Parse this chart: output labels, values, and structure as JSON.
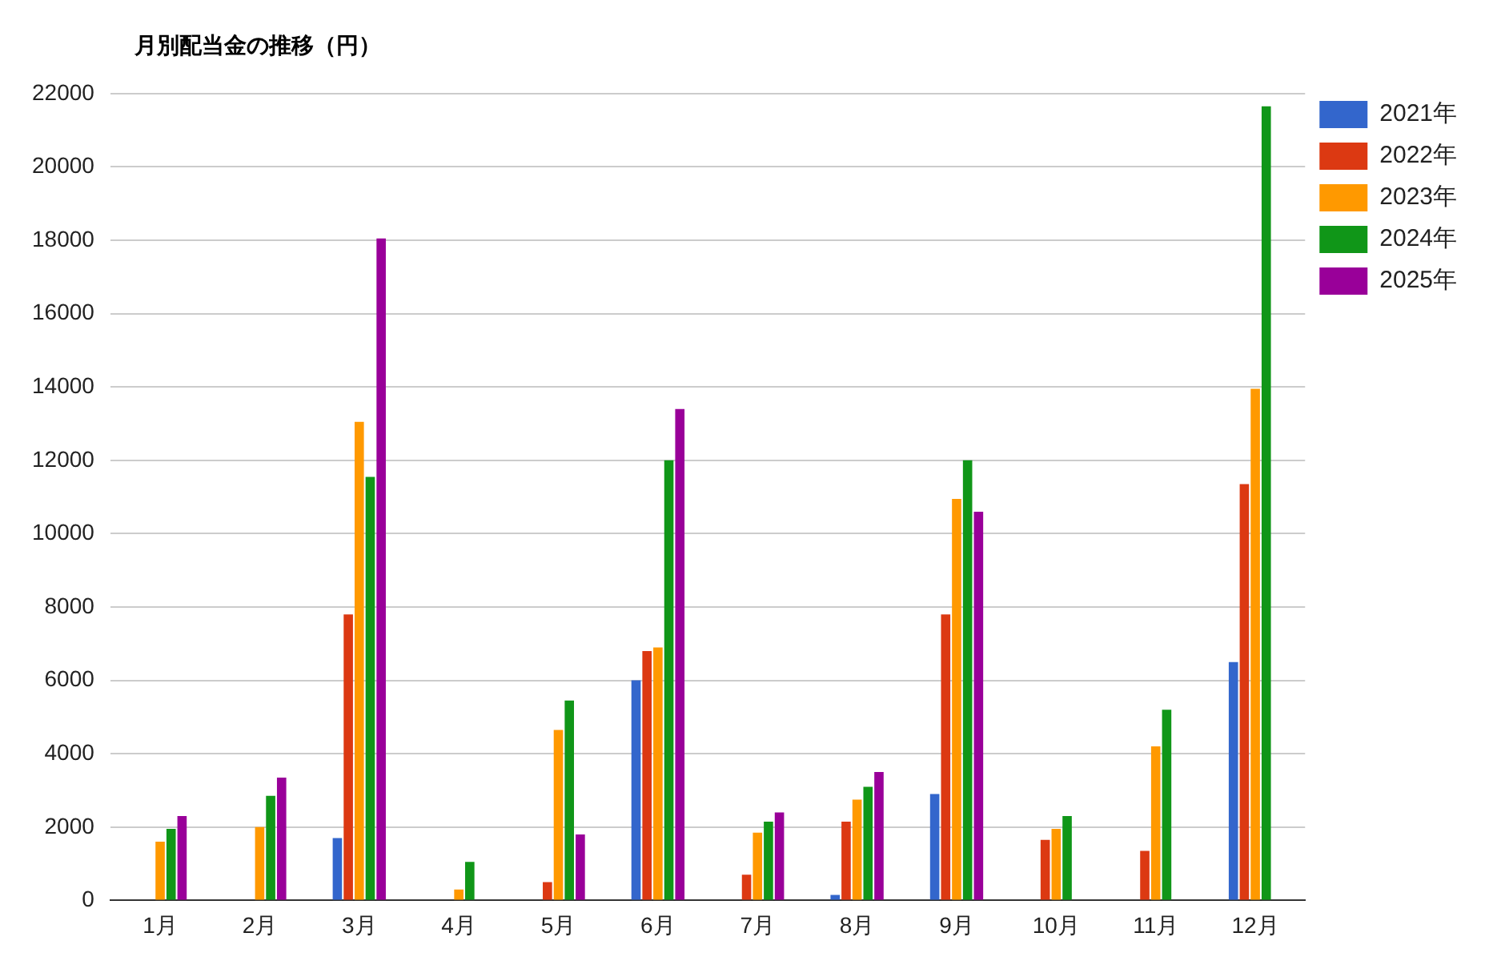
{
  "chart_data": {
    "type": "bar",
    "title": "月別配当金の推移（円）",
    "categories": [
      "1月",
      "2月",
      "3月",
      "4月",
      "5月",
      "6月",
      "7月",
      "8月",
      "9月",
      "10月",
      "11月",
      "12月"
    ],
    "series": [
      {
        "name": "2021年",
        "color": "#3366cc",
        "values": [
          null,
          null,
          1700,
          null,
          null,
          6000,
          null,
          150,
          2900,
          null,
          null,
          6500
        ]
      },
      {
        "name": "2022年",
        "color": "#dc3912",
        "values": [
          null,
          null,
          7800,
          null,
          500,
          6800,
          700,
          2150,
          7800,
          1650,
          1350,
          11350
        ]
      },
      {
        "name": "2023年",
        "color": "#ff9900",
        "values": [
          1600,
          2000,
          13050,
          300,
          4650,
          6900,
          1850,
          2750,
          10950,
          1950,
          4200,
          13950
        ]
      },
      {
        "name": "2024年",
        "color": "#109618",
        "values": [
          1950,
          2850,
          11550,
          1050,
          5450,
          12000,
          2150,
          3100,
          12000,
          2300,
          5200,
          21650
        ]
      },
      {
        "name": "2025年",
        "color": "#990099",
        "values": [
          2300,
          3350,
          18050,
          null,
          1800,
          13400,
          2400,
          3500,
          10600,
          null,
          null,
          null
        ]
      }
    ],
    "ylim": [
      0,
      22000
    ],
    "yticks": [
      0,
      2000,
      4000,
      6000,
      8000,
      10000,
      12000,
      14000,
      16000,
      18000,
      20000,
      22000
    ],
    "grid": "y",
    "legend": "right"
  }
}
